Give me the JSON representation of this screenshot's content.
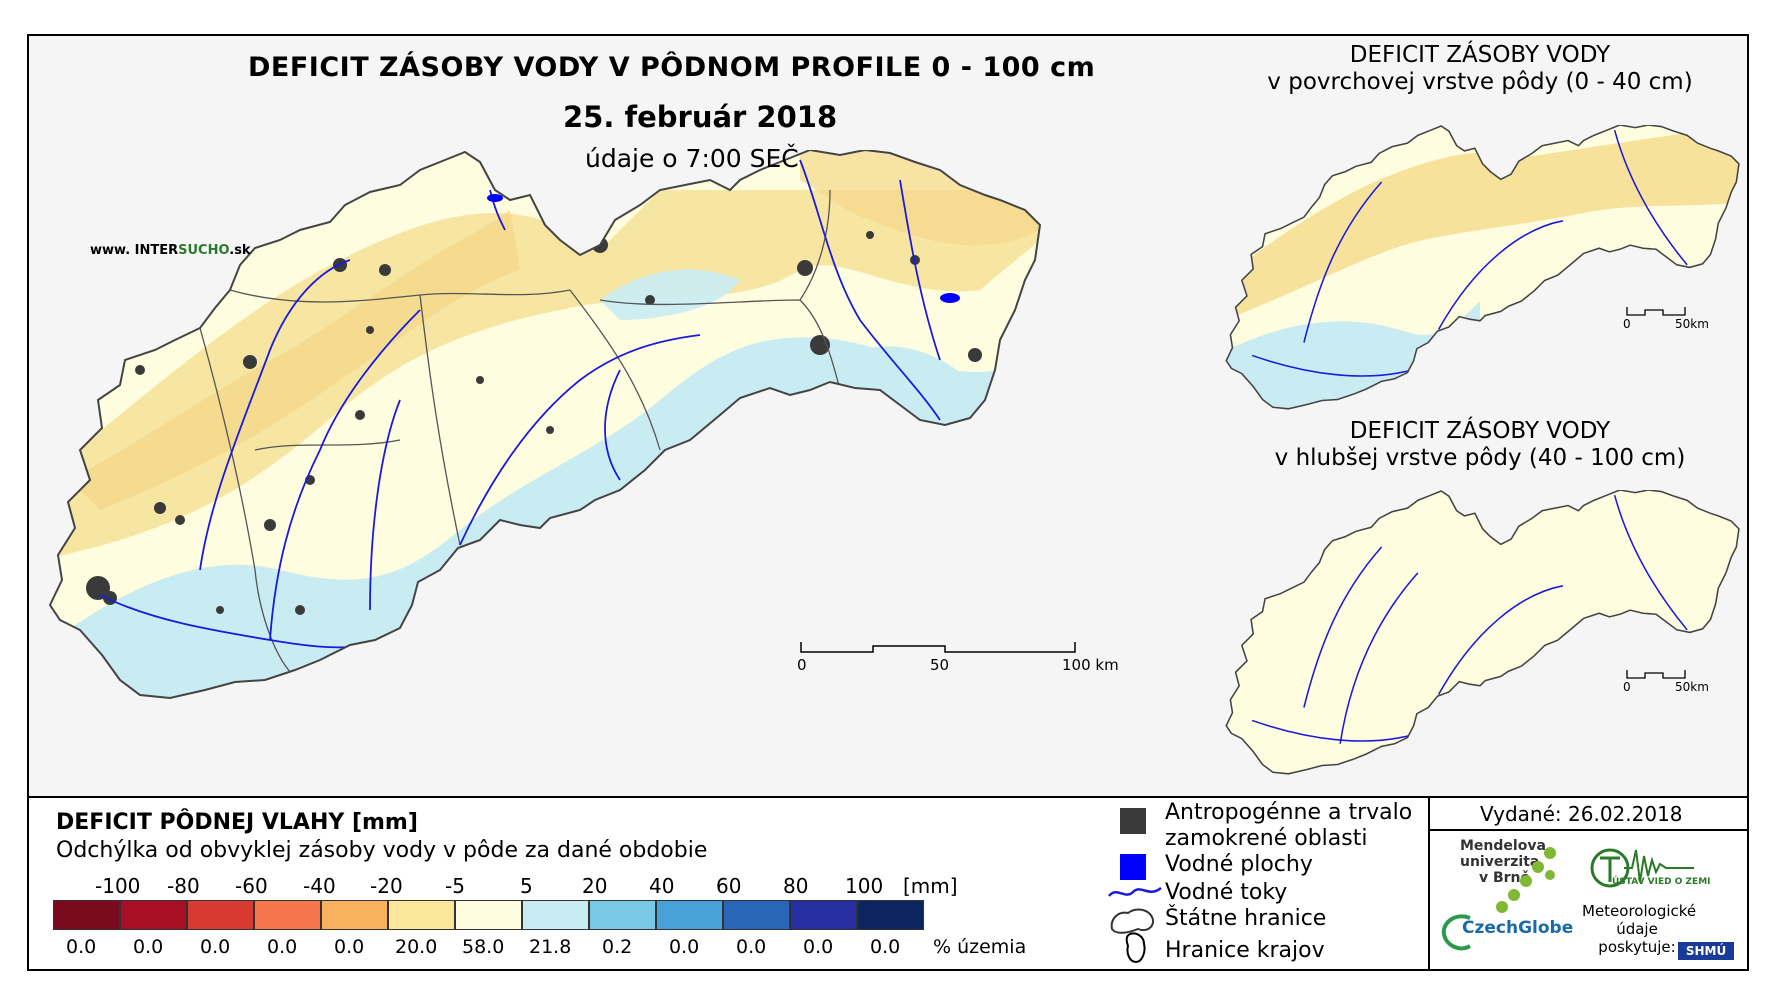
{
  "title": "DEFICIT ZÁSOBY VODY V PÔDNOM PROFILE 0 - 100 cm",
  "date": "25. február 2018",
  "time_note": "údaje o 7:00 SEČ",
  "website": {
    "prefix": "www. INTER",
    "accent": "SUCHO",
    "suffix": ".sk"
  },
  "inset_top": {
    "line1": "DEFICIT ZÁSOBY VODY",
    "line2": "v povrchovej vrstve pôdy (0 - 40 cm)"
  },
  "inset_bottom": {
    "line1": "DEFICIT ZÁSOBY VODY",
    "line2": "v hlubšej vrstve pôdy (40 - 100 cm)"
  },
  "main_scale": {
    "t0": "0",
    "t1": "50",
    "t2": "100 km"
  },
  "inset_scale": {
    "t0": "0",
    "t1": "50km"
  },
  "legend": {
    "title": "DEFICIT PÔDNEJ VLAHY [mm]",
    "subtitle": "Odchýlka od obvyklej zásoby vody v pôde za dané obdobie",
    "ticks": [
      "-100",
      "-80",
      "-60",
      "-40",
      "-20",
      "-5",
      "5",
      "20",
      "40",
      "60",
      "80",
      "100"
    ],
    "unit": "[mm]",
    "colors": [
      "#7a0a1e",
      "#a80f24",
      "#d73a30",
      "#f4774c",
      "#f8b25e",
      "#fbe699",
      "#fffde0",
      "#c9ecf3",
      "#78c8e6",
      "#4aa0d8",
      "#2a66b8",
      "#262ea0",
      "#0c2560"
    ],
    "percentages": [
      "0.0",
      "0.0",
      "0.0",
      "0.0",
      "0.0",
      "20.0",
      "58.0",
      "21.8",
      "0.2",
      "0.0",
      "0.0",
      "0.0",
      "0.0"
    ],
    "pct_label": "% územia"
  },
  "key": {
    "urban_line1": "Antropogénne a trvalo",
    "urban_line2": "zamokrené oblasti",
    "water_bodies": "Vodné plochy",
    "streams": "Vodné toky",
    "state_border": "Štátne hranice",
    "region_border": "Hranice krajov"
  },
  "issued": "Vydané: 26.02.2018",
  "logos": {
    "mendel_line1": "Mendelova",
    "mendel_line2": "univerzita",
    "mendel_line3": "v Brně",
    "czechglobe": "CzechGlobe",
    "uvz": "ÚSTAV VIED O ZEMI",
    "met_line1": "Meteorologické",
    "met_line2": "údaje",
    "met_line3": "poskytuje:",
    "shmu": "SHMÚ"
  },
  "palette": {
    "urban": "#3a3a3a",
    "water": "#0000ff",
    "river": "#1a1adc",
    "border": "#555555"
  }
}
